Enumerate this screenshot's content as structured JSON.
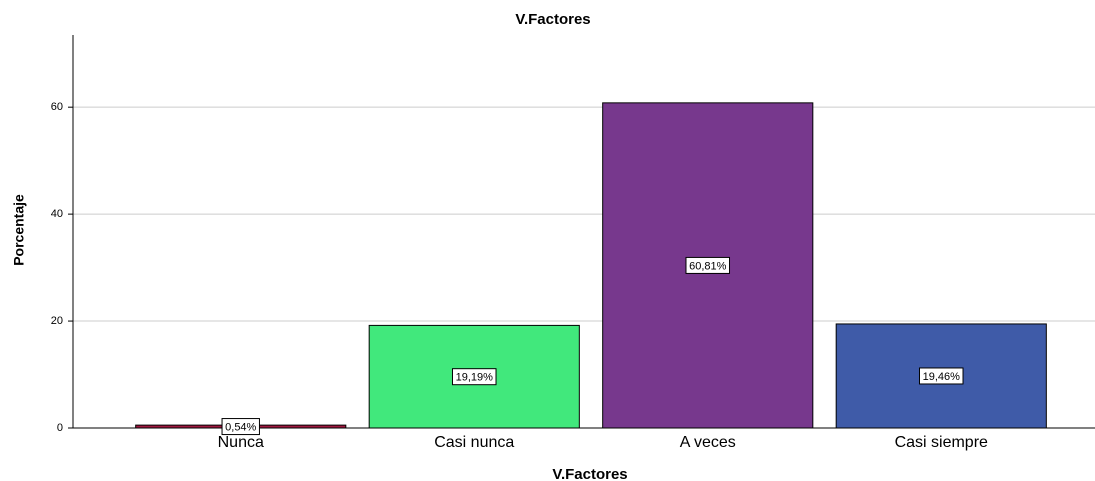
{
  "chart_data": {
    "type": "bar",
    "title": "V.Factores",
    "x_label": "V.Factores",
    "y_label": "Porcentaje",
    "categories": [
      "Nunca",
      "Casi nunca",
      "A veces",
      "Casi siempre"
    ],
    "values": [
      0.54,
      19.19,
      60.81,
      19.46
    ],
    "value_labels": [
      "0,54%",
      "19,19%",
      "60,81%",
      "19,46%"
    ],
    "colors": [
      "#a0173f",
      "#41e87c",
      "#77388d",
      "#3f5ba8"
    ],
    "ylim": [
      0,
      73.5
    ],
    "yticks": [
      0,
      20,
      40,
      60
    ],
    "grid": true
  }
}
